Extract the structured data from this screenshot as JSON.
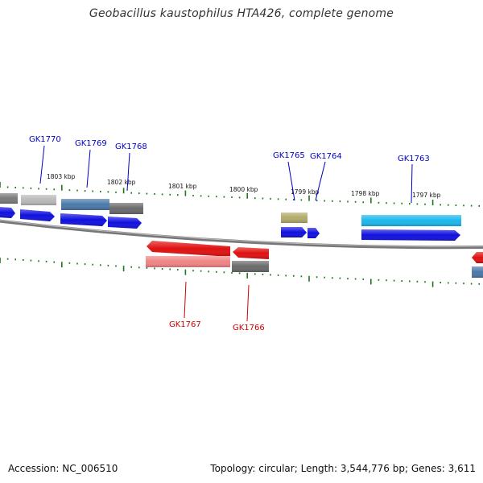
{
  "title": "Geobacillus kaustophilus HTA426, complete genome",
  "footer": {
    "accession_label": "Accession:",
    "accession": "NC_006510",
    "topology_label": "Topology:",
    "topology": "circular",
    "length_label": "Length:",
    "length": "3,544,776 bp",
    "genes_label": "Genes:",
    "genes": "3,611"
  },
  "colors": {
    "forward_label": "#0000c8",
    "reverse_label": "#d00000",
    "tick": "#1a7a1a",
    "backbone": "#888888"
  },
  "kbp_labels": [
    "1803 kbp",
    "1802 kbp",
    "1801 kbp",
    "1800 kbp",
    "1799 kbp",
    "1798 kbp",
    "1797 kbp"
  ],
  "forward_labels": [
    "GK1770",
    "GK1769",
    "GK1768",
    "GK1765",
    "GK1764",
    "GK1763"
  ],
  "reverse_labels": [
    "GK1767",
    "GK1766"
  ],
  "feature_colors": {
    "gray": "#808080",
    "light_gray": "#b4b4b4",
    "steel_blue": "#4a78a8",
    "blue": "#1010e0",
    "red": "#e01010",
    "pink": "#f08080",
    "olive": "#b4ac6c",
    "cyan": "#18c0f0"
  }
}
